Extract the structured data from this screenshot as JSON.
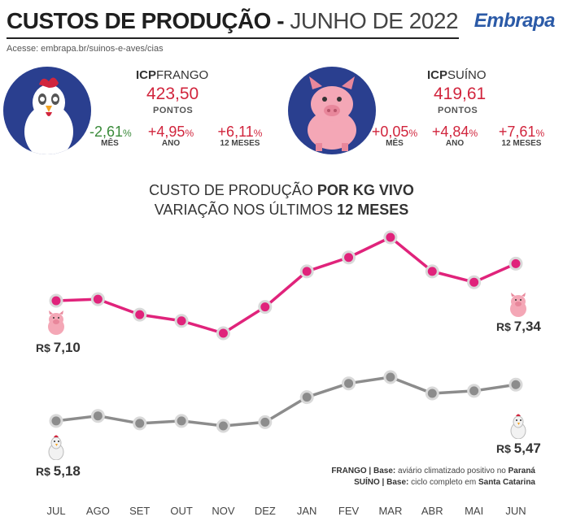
{
  "header": {
    "title_bold": "CUSTOS DE PRODUÇÃO -",
    "title_light": "JUNHO DE 2022",
    "access": "Acesse: embrapa.br/suinos-e-aves/cias",
    "logo": "Embrapa"
  },
  "icp_frango": {
    "name_bold": "ICP",
    "name_rest": "FRANGO",
    "value": "423,50",
    "unit": "PONTOS",
    "variations": [
      {
        "value": "-2,61",
        "pct": "%",
        "label": "MÊS",
        "tone": "neg"
      },
      {
        "value": "+4,95",
        "pct": "%",
        "label": "ANO",
        "tone": "pos"
      },
      {
        "value": "+6,11",
        "pct": "%",
        "label": "12 MESES",
        "tone": "pos"
      }
    ]
  },
  "icp_suino": {
    "name_bold": "ICP",
    "name_rest": "SUÍNO",
    "value": "419,61",
    "unit": "PONTOS",
    "variations": [
      {
        "value": "+0,05",
        "pct": "%",
        "label": "MÊS",
        "tone": "pos"
      },
      {
        "value": "+4,84",
        "pct": "%",
        "label": "ANO",
        "tone": "pos"
      },
      {
        "value": "+7,61",
        "pct": "%",
        "label": "12 MESES",
        "tone": "pos"
      }
    ]
  },
  "chart_titles": {
    "line1_light": "CUSTO DE PRODUÇÃO",
    "line1_bold": "POR KG VIVO",
    "line2_light": "VARIAÇÃO NOS ÚLTIMOS",
    "line2_bold": "12 MESES"
  },
  "price_labels": {
    "suino_start_prefix": "R$",
    "suino_start": "7,10",
    "suino_end_prefix": "R$",
    "suino_end": "7,34",
    "frango_start_prefix": "R$",
    "frango_start": "5,18",
    "frango_end_prefix": "R$",
    "frango_end": "5,47"
  },
  "footnotes": {
    "frango_label": "FRANGO | Base:",
    "frango_text": "aviário climatizado positivo no",
    "frango_place": "Paraná",
    "suino_label": "SUÍNO | Base:",
    "suino_text": "ciclo completo em",
    "suino_place": "Santa Catarina"
  },
  "colors": {
    "suino": "#e0237b",
    "frango": "#8c8c8c",
    "icon_circle": "#2a3f8f",
    "accent_red": "#d1253d",
    "negative_green": "#3a8a3a"
  },
  "chart_data": {
    "type": "line",
    "title": "CUSTO DE PRODUÇÃO POR KG VIVO — VARIAÇÃO NOS ÚLTIMOS 12 MESES",
    "categories": [
      "JUL",
      "AGO",
      "SET",
      "OUT",
      "NOV",
      "DEZ",
      "JAN",
      "FEV",
      "MAR",
      "ABR",
      "MAI",
      "JUN"
    ],
    "series": [
      {
        "name": "SUÍNO",
        "values": [
          7.1,
          7.11,
          7.01,
          6.97,
          6.89,
          7.06,
          7.29,
          7.38,
          7.51,
          7.29,
          7.22,
          7.34
        ]
      },
      {
        "name": "FRANGO",
        "values": [
          5.18,
          5.22,
          5.16,
          5.18,
          5.14,
          5.17,
          5.37,
          5.48,
          5.53,
          5.4,
          5.42,
          5.47
        ]
      }
    ],
    "grid": false,
    "legend": "none"
  }
}
